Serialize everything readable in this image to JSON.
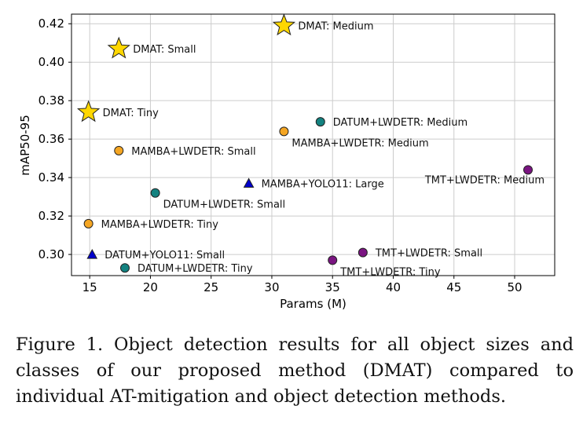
{
  "chart_data": {
    "type": "scatter",
    "xlabel": "Params (M)",
    "ylabel": "mAP50-95",
    "xlim": [
      13.5,
      53.3
    ],
    "ylim": [
      0.289,
      0.425
    ],
    "grid": true,
    "x_ticks": [
      15,
      20,
      25,
      30,
      35,
      40,
      45,
      50
    ],
    "x_tick_labels": [
      "15",
      "20",
      "25",
      "30",
      "35",
      "40",
      "45",
      "50"
    ],
    "y_ticks": [
      0.3,
      0.32,
      0.34,
      0.36,
      0.38,
      0.4,
      0.42
    ],
    "y_tick_labels": [
      "0.30",
      "0.32",
      "0.34",
      "0.36",
      "0.38",
      "0.40",
      "0.42"
    ],
    "colors": {
      "DMAT": "#FFD700",
      "MAMBA+LWDETR": "#F5A623",
      "DATUM+LWDETR": "#138280",
      "TMT+LWDETR": "#7A1481",
      "YOLO11": "#0000CC",
      "edge": "#222222",
      "grid": "#cccccc"
    },
    "points": [
      {
        "label": "DMAT: Medium",
        "family": "DMAT",
        "marker": "star",
        "x": 31.0,
        "y": 0.419,
        "label_pos": "right"
      },
      {
        "label": "DMAT: Small",
        "family": "DMAT",
        "marker": "star",
        "x": 17.4,
        "y": 0.407,
        "label_pos": "right"
      },
      {
        "label": "DMAT: Tiny",
        "family": "DMAT",
        "marker": "star",
        "x": 14.9,
        "y": 0.374,
        "label_pos": "right"
      },
      {
        "label": "DATUM+LWDETR: Medium",
        "family": "DATUM+LWDETR",
        "marker": "circle",
        "x": 34.0,
        "y": 0.369,
        "label_pos": "right"
      },
      {
        "label": "MAMBA+LWDETR: Medium",
        "family": "MAMBA+LWDETR",
        "marker": "circle",
        "x": 31.0,
        "y": 0.364,
        "label_pos": "below-right"
      },
      {
        "label": "MAMBA+LWDETR: Small",
        "family": "MAMBA+LWDETR",
        "marker": "circle",
        "x": 17.4,
        "y": 0.354,
        "label_pos": "right"
      },
      {
        "label": "TMT+LWDETR: Medium",
        "family": "TMT+LWDETR",
        "marker": "circle",
        "x": 51.1,
        "y": 0.344,
        "label_pos": "below-left"
      },
      {
        "label": "MAMBA+YOLO11: Large",
        "family": "YOLO11",
        "marker": "triangle",
        "x": 28.1,
        "y": 0.337,
        "label_pos": "right"
      },
      {
        "label": "DATUM+LWDETR: Small",
        "family": "DATUM+LWDETR",
        "marker": "circle",
        "x": 20.4,
        "y": 0.332,
        "label_pos": "below-right"
      },
      {
        "label": "MAMBA+LWDETR: Tiny",
        "family": "MAMBA+LWDETR",
        "marker": "circle",
        "x": 14.9,
        "y": 0.316,
        "label_pos": "right"
      },
      {
        "label": "TMT+LWDETR: Small",
        "family": "TMT+LWDETR",
        "marker": "circle",
        "x": 37.5,
        "y": 0.301,
        "label_pos": "right"
      },
      {
        "label": "DATUM+YOLO11: Small",
        "family": "YOLO11",
        "marker": "triangle",
        "x": 15.2,
        "y": 0.3,
        "label_pos": "right"
      },
      {
        "label": "TMT+LWDETR: Tiny",
        "family": "TMT+LWDETR",
        "marker": "circle",
        "x": 35.0,
        "y": 0.297,
        "label_pos": "below-right"
      },
      {
        "label": "DATUM+LWDETR: Tiny",
        "family": "DATUM+LWDETR",
        "marker": "circle",
        "x": 17.9,
        "y": 0.293,
        "label_pos": "right"
      }
    ]
  },
  "caption": "Figure 1.  Object detection results for all object sizes and classes of our proposed method (DMAT) compared to individual AT-mitigation and object detection methods."
}
